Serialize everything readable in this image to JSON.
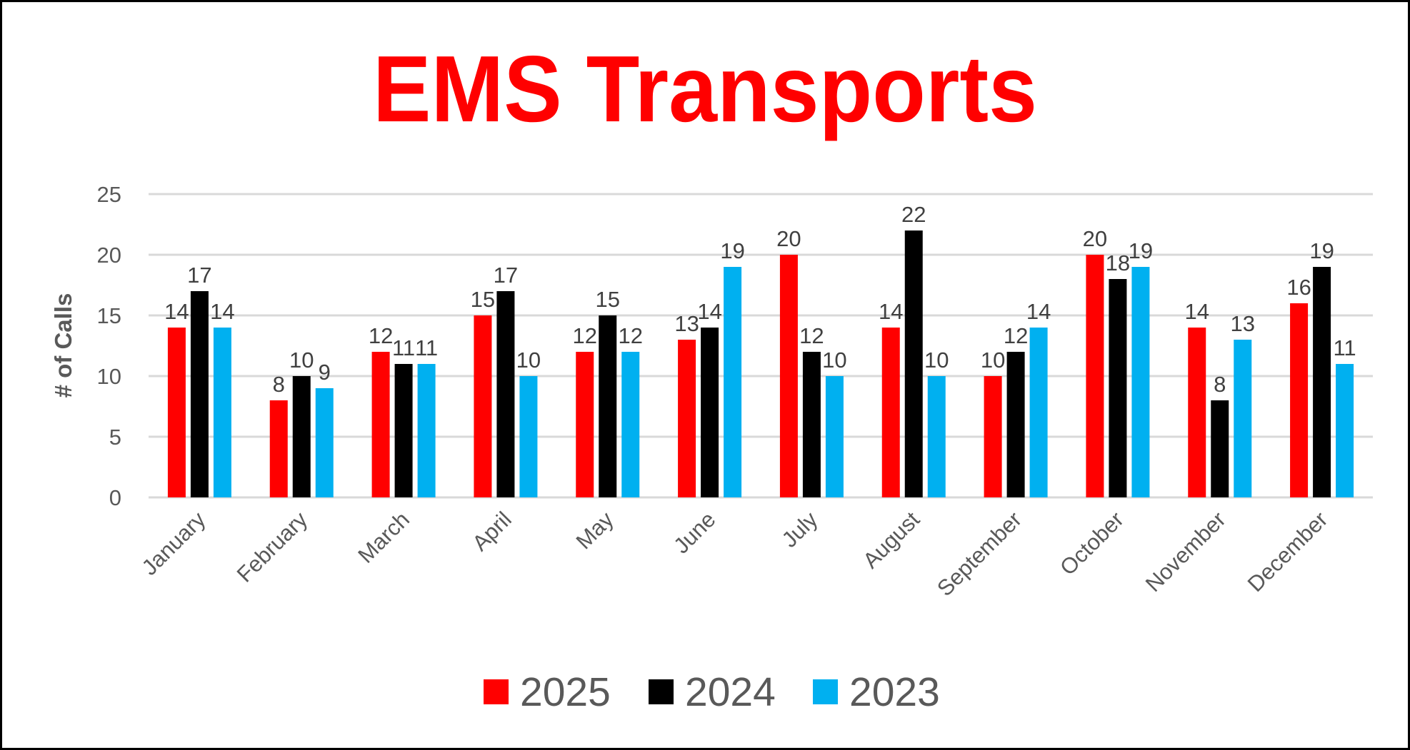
{
  "chart_data": {
    "type": "bar",
    "title": "EMS Transports",
    "xlabel": "",
    "ylabel": "# of Calls",
    "ylim": [
      0,
      25
    ],
    "yticks": [
      0,
      5,
      10,
      15,
      20,
      25
    ],
    "grid": true,
    "legend_position": "bottom",
    "data_labels": true,
    "categories": [
      "January",
      "February",
      "March",
      "April",
      "May",
      "June",
      "July",
      "August",
      "September",
      "October",
      "November",
      "December"
    ],
    "series": [
      {
        "name": "2025",
        "color": "#ff0000",
        "values": [
          14,
          8,
          12,
          15,
          12,
          13,
          20,
          14,
          10,
          20,
          14,
          16
        ]
      },
      {
        "name": "2024",
        "color": "#000000",
        "values": [
          17,
          10,
          11,
          17,
          15,
          14,
          12,
          22,
          12,
          18,
          8,
          19
        ]
      },
      {
        "name": "2023",
        "color": "#00b0f0",
        "values": [
          14,
          9,
          11,
          10,
          12,
          19,
          10,
          10,
          14,
          19,
          13,
          11
        ]
      }
    ]
  }
}
